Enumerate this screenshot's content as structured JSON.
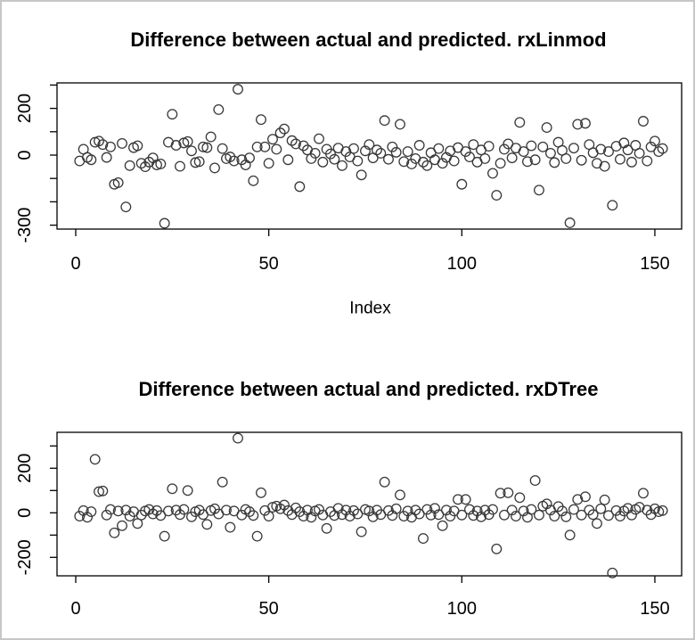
{
  "window": {
    "kind": "R plot output",
    "background": "#ffffff"
  },
  "colors": {
    "background": "#ffffff",
    "frame_border": "#c6c6c6",
    "axis": "#000000",
    "marker_stroke": "#383838",
    "text": "#000000"
  },
  "chart_data": [
    {
      "type": "scatter",
      "title": "Difference between actual and predicted. rxLinmod",
      "xlabel": "Index",
      "ylabel": "",
      "marker": "open-circle",
      "x_ticks": [
        0,
        50,
        100,
        150
      ],
      "x_tick_labels": [
        "0",
        "50",
        "100",
        "150"
      ],
      "y_ticks": [
        300,
        200,
        100,
        0,
        -100,
        -200,
        -300
      ],
      "y_tick_labels": [
        "",
        "200",
        "",
        "0",
        "",
        "",
        "-300"
      ],
      "xlim": [
        -5,
        158
      ],
      "ylim": [
        -317,
        309
      ],
      "x_start_index": 1,
      "values": [
        -25,
        25,
        -10,
        -20,
        55,
        60,
        45,
        -10,
        35,
        -125,
        -118,
        50,
        -222,
        -45,
        32,
        40,
        -35,
        -50,
        -30,
        -12,
        -42,
        -38,
        -292,
        55,
        175,
        42,
        -48,
        52,
        58,
        18,
        -32,
        -28,
        35,
        32,
        78,
        -55,
        195,
        28,
        -15,
        -8,
        -25,
        282,
        -20,
        -42,
        -12,
        -110,
        35,
        152,
        35,
        -35,
        68,
        25,
        95,
        112,
        -20,
        62,
        48,
        -135,
        40,
        22,
        -15,
        8,
        70,
        -30,
        25,
        5,
        -18,
        30,
        -45,
        15,
        -8,
        28,
        -25,
        -85,
        18,
        45,
        -12,
        22,
        8,
        148,
        -18,
        35,
        12,
        132,
        -28,
        15,
        -38,
        -15,
        42,
        -30,
        -45,
        10,
        -20,
        28,
        -35,
        -10,
        18,
        -25,
        32,
        -125,
        15,
        -8,
        45,
        -30,
        22,
        -15,
        38,
        -78,
        -172,
        -35,
        25,
        48,
        -12,
        30,
        140,
        15,
        -28,
        40,
        -20,
        -150,
        35,
        118,
        8,
        -32,
        55,
        20,
        -15,
        -290,
        30,
        132,
        -22,
        136,
        45,
        10,
        -35,
        25,
        -48,
        15,
        -215,
        38,
        -18,
        52,
        22,
        -30,
        42,
        8,
        145,
        -25,
        35,
        60,
        15,
        28
      ]
    },
    {
      "type": "scatter",
      "title": "Difference between actual and predicted. rxDTree",
      "xlabel": "",
      "ylabel": "",
      "marker": "open-circle",
      "x_ticks": [
        0,
        50,
        100,
        150
      ],
      "x_tick_labels": [
        "0",
        "50",
        "100",
        "150"
      ],
      "y_ticks": [
        300,
        200,
        100,
        0,
        -100,
        -200
      ],
      "y_tick_labels": [
        "",
        "200",
        "",
        "0",
        "",
        "-200"
      ],
      "xlim": [
        -5,
        158
      ],
      "ylim": [
        -283,
        362
      ],
      "x_start_index": 1,
      "values": [
        -15,
        10,
        -20,
        5,
        240,
        95,
        98,
        -10,
        15,
        -90,
        8,
        -58,
        12,
        -15,
        5,
        -48,
        -10,
        8,
        15,
        -5,
        10,
        -12,
        -105,
        8,
        108,
        12,
        -8,
        15,
        100,
        -18,
        5,
        12,
        -8,
        -52,
        10,
        18,
        -5,
        138,
        12,
        -65,
        8,
        335,
        -10,
        15,
        5,
        -12,
        -105,
        90,
        10,
        -15,
        25,
        30,
        18,
        35,
        10,
        -8,
        22,
        5,
        -15,
        12,
        -20,
        8,
        15,
        -10,
        -70,
        5,
        -12,
        20,
        -8,
        12,
        -15,
        10,
        -5,
        -85,
        15,
        8,
        -18,
        12,
        -8,
        138,
        10,
        -12,
        18,
        80,
        -15,
        8,
        -20,
        12,
        -5,
        -115,
        15,
        -10,
        20,
        -8,
        -58,
        12,
        -15,
        8,
        60,
        -10,
        60,
        15,
        -12,
        8,
        -18,
        12,
        -8,
        15,
        -162,
        88,
        -10,
        90,
        12,
        -15,
        68,
        8,
        -20,
        15,
        145,
        -10,
        30,
        40,
        12,
        -15,
        28,
        8,
        -18,
        -100,
        15,
        60,
        -10,
        72,
        12,
        -8,
        -48,
        18,
        58,
        -12,
        -270,
        10,
        -15,
        8,
        20,
        -10,
        15,
        25,
        88,
        12,
        -8,
        18,
        5,
        10
      ]
    }
  ]
}
